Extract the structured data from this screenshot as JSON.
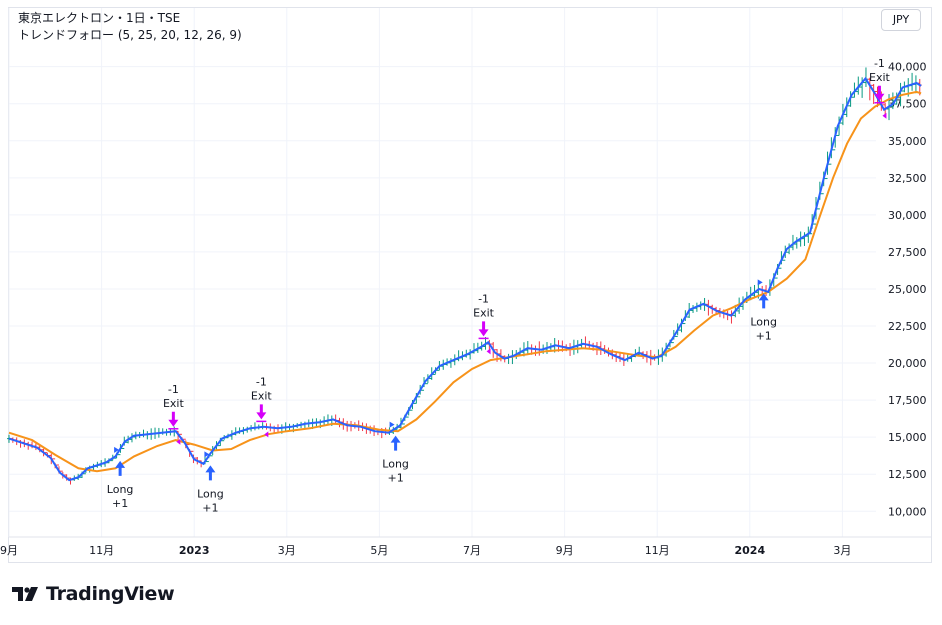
{
  "header": {
    "symbol_line": "東京エレクトロン・1日・TSE",
    "indicator_line": "トレンドフォロー (5, 25, 20, 12, 26, 9)",
    "currency": "JPY"
  },
  "branding": {
    "logo_text": "TradingView"
  },
  "colors": {
    "fast_ma": "#2962ff",
    "slow_ma": "#f7931a",
    "candle_up": "#089981",
    "candle_down": "#f23645",
    "signal_long": "#2962ff",
    "signal_exit": "#d500f9",
    "grid": "#f0f3fa"
  },
  "chart_data": {
    "type": "line",
    "x_axis": {
      "ticks": [
        {
          "label": "9月",
          "month": 0
        },
        {
          "label": "11月",
          "month": 2
        },
        {
          "label": "2023",
          "month": 4,
          "bold": true
        },
        {
          "label": "3月",
          "month": 6
        },
        {
          "label": "5月",
          "month": 8
        },
        {
          "label": "7月",
          "month": 10
        },
        {
          "label": "9月",
          "month": 12
        },
        {
          "label": "11月",
          "month": 14
        },
        {
          "label": "2024",
          "month": 16,
          "bold": true
        },
        {
          "label": "3月",
          "month": 18
        }
      ],
      "month_domain": [
        0,
        19.7
      ]
    },
    "y_axis": {
      "ticks": [
        10000,
        12500,
        15000,
        17500,
        20000,
        22500,
        25000,
        27500,
        30000,
        32500,
        35000,
        37500,
        40000
      ],
      "tick_labels": [
        "10,000",
        "12,500",
        "15,000",
        "17,500",
        "20,000",
        "22,500",
        "25,000",
        "27,500",
        "30,000",
        "32,500",
        "35,000",
        "37,500",
        "40,000"
      ],
      "range": [
        8600,
        41800
      ],
      "position": "right"
    },
    "grid": true,
    "series": [
      {
        "key": "fast",
        "points": [
          [
            0,
            14900
          ],
          [
            0.3,
            14600
          ],
          [
            0.6,
            14300
          ],
          [
            0.9,
            13600
          ],
          [
            1.1,
            12600
          ],
          [
            1.3,
            12100
          ],
          [
            1.5,
            12300
          ],
          [
            1.7,
            12900
          ],
          [
            1.9,
            13100
          ],
          [
            2.1,
            13300
          ],
          [
            2.3,
            13700
          ],
          [
            2.5,
            14700
          ],
          [
            2.7,
            15100
          ],
          [
            3.0,
            15200
          ],
          [
            3.3,
            15300
          ],
          [
            3.6,
            15400
          ],
          [
            3.8,
            14600
          ],
          [
            4.0,
            13500
          ],
          [
            4.2,
            13200
          ],
          [
            4.35,
            13900
          ],
          [
            4.6,
            14900
          ],
          [
            4.9,
            15300
          ],
          [
            5.2,
            15600
          ],
          [
            5.5,
            15700
          ],
          [
            5.8,
            15600
          ],
          [
            6.1,
            15700
          ],
          [
            6.4,
            15900
          ],
          [
            6.7,
            16000
          ],
          [
            7.0,
            16200
          ],
          [
            7.3,
            15800
          ],
          [
            7.6,
            15700
          ],
          [
            7.9,
            15400
          ],
          [
            8.2,
            15300
          ],
          [
            8.45,
            15800
          ],
          [
            8.7,
            17200
          ],
          [
            9.0,
            18800
          ],
          [
            9.3,
            19800
          ],
          [
            9.6,
            20200
          ],
          [
            9.9,
            20600
          ],
          [
            10.2,
            21100
          ],
          [
            10.35,
            21400
          ],
          [
            10.5,
            20700
          ],
          [
            10.7,
            20300
          ],
          [
            10.9,
            20500
          ],
          [
            11.2,
            21000
          ],
          [
            11.5,
            20900
          ],
          [
            11.8,
            21200
          ],
          [
            12.1,
            21000
          ],
          [
            12.4,
            21300
          ],
          [
            12.7,
            21100
          ],
          [
            13.0,
            20600
          ],
          [
            13.3,
            20200
          ],
          [
            13.6,
            20700
          ],
          [
            13.9,
            20300
          ],
          [
            14.1,
            20500
          ],
          [
            14.4,
            22000
          ],
          [
            14.7,
            23600
          ],
          [
            15.0,
            24000
          ],
          [
            15.3,
            23500
          ],
          [
            15.6,
            23200
          ],
          [
            15.9,
            24300
          ],
          [
            16.2,
            25000
          ],
          [
            16.4,
            24800
          ],
          [
            16.6,
            26400
          ],
          [
            16.8,
            27700
          ],
          [
            17.0,
            28200
          ],
          [
            17.3,
            28800
          ],
          [
            17.6,
            32500
          ],
          [
            17.9,
            36000
          ],
          [
            18.2,
            38100
          ],
          [
            18.5,
            39200
          ],
          [
            18.7,
            38200
          ],
          [
            18.9,
            37100
          ],
          [
            19.1,
            37500
          ],
          [
            19.3,
            38600
          ],
          [
            19.6,
            38900
          ],
          [
            19.7,
            38700
          ]
        ]
      },
      {
        "key": "slow",
        "points": [
          [
            0,
            15300
          ],
          [
            0.5,
            14800
          ],
          [
            1.0,
            13800
          ],
          [
            1.5,
            12900
          ],
          [
            1.9,
            12700
          ],
          [
            2.3,
            12900
          ],
          [
            2.7,
            13700
          ],
          [
            3.2,
            14400
          ],
          [
            3.6,
            14800
          ],
          [
            4.0,
            14500
          ],
          [
            4.4,
            14100
          ],
          [
            4.8,
            14200
          ],
          [
            5.2,
            14800
          ],
          [
            5.6,
            15200
          ],
          [
            6.0,
            15400
          ],
          [
            6.5,
            15600
          ],
          [
            7.0,
            15900
          ],
          [
            7.5,
            15800
          ],
          [
            8.0,
            15500
          ],
          [
            8.4,
            15400
          ],
          [
            8.8,
            16200
          ],
          [
            9.2,
            17400
          ],
          [
            9.6,
            18700
          ],
          [
            10.0,
            19600
          ],
          [
            10.4,
            20200
          ],
          [
            10.8,
            20400
          ],
          [
            11.2,
            20600
          ],
          [
            11.6,
            20800
          ],
          [
            12.0,
            20900
          ],
          [
            12.4,
            21000
          ],
          [
            12.8,
            20900
          ],
          [
            13.2,
            20700
          ],
          [
            13.6,
            20500
          ],
          [
            14.0,
            20400
          ],
          [
            14.4,
            21100
          ],
          [
            14.8,
            22200
          ],
          [
            15.2,
            23200
          ],
          [
            15.6,
            23700
          ],
          [
            16.0,
            24300
          ],
          [
            16.4,
            24800
          ],
          [
            16.8,
            25700
          ],
          [
            17.2,
            27000
          ],
          [
            17.5,
            29800
          ],
          [
            17.8,
            32500
          ],
          [
            18.1,
            34800
          ],
          [
            18.4,
            36500
          ],
          [
            18.7,
            37300
          ],
          [
            19.0,
            37800
          ],
          [
            19.3,
            38100
          ],
          [
            19.6,
            38300
          ],
          [
            19.7,
            38200
          ]
        ]
      }
    ],
    "signals": [
      {
        "type": "long",
        "month": 2.4,
        "price": 13400,
        "label": "Long",
        "qty": "+1"
      },
      {
        "type": "exit",
        "month": 3.55,
        "price": 15700,
        "label": "Exit",
        "qty": "-1"
      },
      {
        "type": "long",
        "month": 4.35,
        "price": 13100,
        "label": "Long",
        "qty": "+1"
      },
      {
        "type": "exit",
        "month": 5.45,
        "price": 16200,
        "label": "Exit",
        "qty": "-1"
      },
      {
        "type": "long",
        "month": 8.35,
        "price": 15100,
        "label": "Long",
        "qty": "+1"
      },
      {
        "type": "exit",
        "month": 10.25,
        "price": 21800,
        "label": "Exit",
        "qty": "-1"
      },
      {
        "type": "long",
        "month": 16.3,
        "price": 24700,
        "label": "Long",
        "qty": "+1"
      },
      {
        "type": "exit",
        "month": 18.8,
        "price": 37700,
        "label": "Exit",
        "qty": "-1"
      }
    ]
  }
}
